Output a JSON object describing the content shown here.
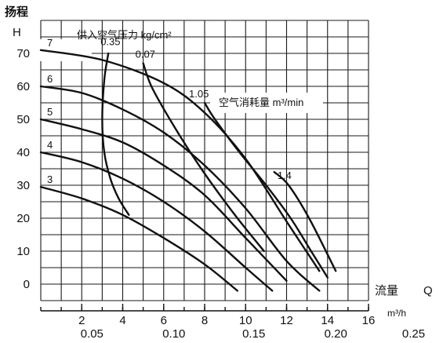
{
  "chart_data": {
    "type": "line",
    "title": "",
    "ylabel_cn": "扬程",
    "ylabel_symbol": "H",
    "xlabel_cn": "流量",
    "xlabel_symbol": "Q",
    "x_unit": "m³/h",
    "legend_pressure_title": "供入空气压力 kg/cm²",
    "legend_air_title": "空气消耗量 m³/min",
    "x_ticks": [
      "2",
      "4",
      "6",
      "8",
      "10",
      "12",
      "14",
      "16"
    ],
    "x_tick_values": [
      2,
      4,
      6,
      8,
      10,
      12,
      14,
      16
    ],
    "x2_ticks": [
      "0.05",
      "0.10",
      "0.15",
      "0.20",
      "0.25"
    ],
    "x2_tick_values": [
      2.5,
      6.5,
      10.4,
      14.4,
      18.2
    ],
    "y_ticks": [
      "0",
      "10",
      "20",
      "30",
      "40",
      "50",
      "60",
      "70"
    ],
    "y_tick_values": [
      0,
      10,
      20,
      30,
      40,
      50,
      60,
      70
    ],
    "xlim": [
      0,
      16
    ],
    "ylim": [
      -5,
      80
    ],
    "grid": true,
    "pressure_series": [
      {
        "name": "7",
        "x": [
          0,
          3,
          6,
          8,
          10,
          12,
          13.6
        ],
        "y": [
          71,
          68,
          61,
          52,
          38,
          19,
          4
        ]
      },
      {
        "name": "6",
        "x": [
          0,
          2,
          4,
          6,
          8,
          10,
          12,
          13.6
        ],
        "y": [
          60,
          58,
          53,
          46,
          36,
          23,
          7,
          -2
        ]
      },
      {
        "name": "5",
        "x": [
          0,
          2,
          4,
          6,
          8,
          10,
          12
        ],
        "y": [
          50,
          47,
          43,
          36,
          27,
          14,
          1
        ]
      },
      {
        "name": "4",
        "x": [
          0,
          2,
          4,
          6,
          8,
          10,
          11.3
        ],
        "y": [
          40,
          37,
          32,
          25,
          16,
          5,
          -2
        ]
      },
      {
        "name": "3",
        "x": [
          0,
          2,
          4,
          6,
          8,
          9.6
        ],
        "y": [
          29.5,
          26,
          21,
          14,
          6,
          -2
        ]
      }
    ],
    "air_series": [
      {
        "name": "0.35",
        "x": [
          3.3,
          3.1,
          3.0,
          3.1,
          3.4,
          3.8,
          4.3
        ],
        "y": [
          70,
          62,
          50,
          40,
          32,
          26,
          21
        ]
      },
      {
        "name": "0.07",
        "x": [
          5.0,
          5.4,
          6.3,
          7.3,
          8.4,
          9.6,
          10.9
        ],
        "y": [
          67,
          60,
          50,
          40,
          30,
          20,
          10
        ]
      },
      {
        "name": "1.05",
        "x": [
          8.0,
          8.5,
          9.7,
          11.0,
          12.2,
          13.2,
          14.0
        ],
        "y": [
          55,
          50,
          40,
          30,
          20,
          10,
          2
        ]
      },
      {
        "name": "1.4",
        "x": [
          11.4,
          12.1,
          13.1,
          14.4
        ],
        "y": [
          34,
          30,
          20,
          4
        ]
      }
    ]
  }
}
